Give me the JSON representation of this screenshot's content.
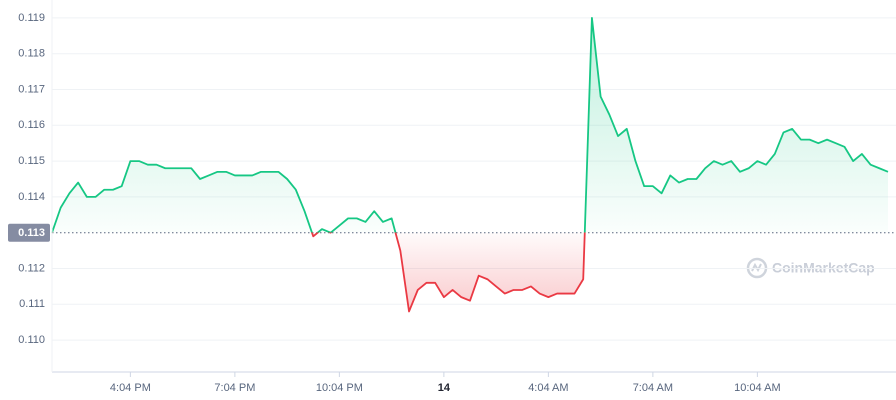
{
  "chart_data": {
    "type": "line",
    "categories": [
      null,
      null,
      null,
      null,
      null,
      null,
      null,
      null,
      null,
      "4:04 PM",
      null,
      null,
      null,
      null,
      null,
      null,
      null,
      null,
      null,
      null,
      null,
      "7:04 PM",
      null,
      null,
      null,
      null,
      null,
      null,
      null,
      null,
      null,
      null,
      null,
      "10:04 PM",
      null,
      null,
      null,
      null,
      null,
      null,
      null,
      null,
      null,
      null,
      null,
      "14",
      null,
      null,
      null,
      null,
      null,
      null,
      null,
      null,
      null,
      null,
      null,
      "4:04 AM",
      null,
      null,
      null,
      null,
      null,
      null,
      null,
      null,
      null,
      null,
      null,
      "7:04 AM",
      null,
      null,
      null,
      null,
      null,
      null,
      null,
      null,
      null,
      null,
      null,
      "10:04 AM",
      null,
      null,
      null,
      null,
      null,
      null,
      null,
      null,
      null,
      null,
      null,
      null,
      null,
      null,
      null
    ],
    "values": [
      0.113,
      0.1137,
      0.1141,
      0.1144,
      0.114,
      0.114,
      0.1142,
      0.1142,
      0.1143,
      0.115,
      0.115,
      0.1149,
      0.1149,
      0.1148,
      0.1148,
      0.1148,
      0.1148,
      0.1145,
      0.1146,
      0.1147,
      0.1147,
      0.1146,
      0.1146,
      0.1146,
      0.1147,
      0.1147,
      0.1147,
      0.1145,
      0.1142,
      0.1136,
      0.1129,
      0.1131,
      0.113,
      0.1132,
      0.1134,
      0.1134,
      0.1133,
      0.1136,
      0.1133,
      0.1134,
      0.1125,
      0.1108,
      0.1114,
      0.1116,
      0.1116,
      0.1112,
      0.1114,
      0.1112,
      0.1111,
      0.1118,
      0.1117,
      0.1115,
      0.1113,
      0.1114,
      0.1114,
      0.1115,
      0.1113,
      0.1112,
      0.1113,
      0.1113,
      0.1113,
      0.1117,
      0.119,
      0.1168,
      0.1163,
      0.1157,
      0.1159,
      0.115,
      0.1143,
      0.1143,
      0.1141,
      0.1146,
      0.1144,
      0.1145,
      0.1145,
      0.1148,
      0.115,
      0.1149,
      0.115,
      0.1147,
      0.1148,
      0.115,
      0.1149,
      0.1152,
      0.1158,
      0.1159,
      0.1156,
      0.1156,
      0.1155,
      0.1156,
      0.1155,
      0.1154,
      0.115,
      0.1152,
      0.1149,
      0.1148,
      0.1147
    ],
    "baseline": 0.113,
    "up_color": "#16c784",
    "down_color": "#ea3943",
    "ylim": [
      0.1095,
      0.1195
    ],
    "yticks": [
      {
        "value": 0.11,
        "label": "0.110"
      },
      0.111,
      0.112,
      0.114,
      0.115,
      0.116,
      0.117,
      0.118,
      0.119
    ],
    "grid": true,
    "watermark": "CoinMarketCap"
  }
}
